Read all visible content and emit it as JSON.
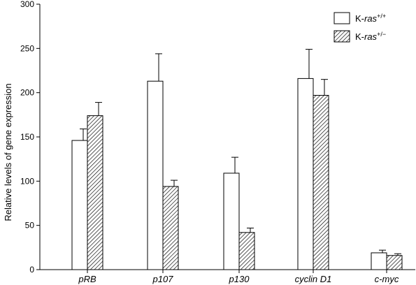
{
  "chart_data": {
    "type": "bar",
    "title": "",
    "xlabel": "",
    "ylabel": "Relative levels of gene expression",
    "ylim": [
      0,
      300
    ],
    "yticks": [
      0,
      50,
      100,
      150,
      200,
      250,
      300
    ],
    "categories": [
      "pRB",
      "p107",
      "p130",
      "cyclin D1",
      "c-myc"
    ],
    "series": [
      {
        "name": "K-ras+/+",
        "name_base": "K-",
        "name_italic": "ras",
        "name_sup": "+/+",
        "pattern": "open",
        "values": [
          146,
          213,
          109,
          216,
          19
        ],
        "errors": [
          13,
          31,
          18,
          33,
          3
        ]
      },
      {
        "name": "K-ras+/−",
        "name_base": "K-",
        "name_italic": "ras",
        "name_sup": "+/−",
        "pattern": "hatched",
        "values": [
          174,
          94,
          42,
          197,
          16
        ],
        "errors": [
          15,
          7,
          5,
          18,
          2
        ]
      }
    ],
    "grid": false,
    "legend": "top-right",
    "error_bars": "upper"
  }
}
